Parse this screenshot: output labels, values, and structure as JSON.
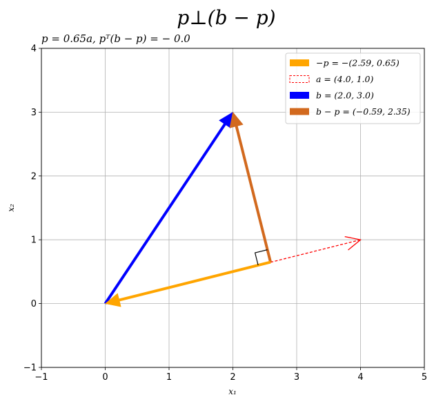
{
  "chart_data": {
    "type": "vector",
    "title": "p⊥(b − p)",
    "subtitle": "p = 0.65a, pᵀ(b − p) = − 0.0",
    "xlabel": "x₁",
    "ylabel": "x₂",
    "xlim": [
      -1,
      5
    ],
    "ylim": [
      -1,
      4
    ],
    "xticks": [
      -1,
      0,
      1,
      2,
      3,
      4,
      5
    ],
    "yticks": [
      -1,
      0,
      1,
      2,
      3,
      4
    ],
    "grid": true,
    "legend_position": "upper-right",
    "right_angle_marker": {
      "at": [
        2.59,
        0.65
      ],
      "size": 0.2
    },
    "vectors": [
      {
        "name": "−p = −(2.59, 0.65)",
        "from": [
          2.59,
          0.65
        ],
        "to": [
          0,
          0
        ],
        "color": "#ffa500",
        "style": "solid"
      },
      {
        "name": "a = (4.0, 1.0)",
        "from": [
          0,
          0
        ],
        "to": [
          4.0,
          1.0
        ],
        "color": "#ff0000",
        "style": "dashed"
      },
      {
        "name": "b = (2.0, 3.0)",
        "from": [
          0,
          0
        ],
        "to": [
          2.0,
          3.0
        ],
        "color": "#0000ff",
        "style": "solid"
      },
      {
        "name": "b − p = (−0.59, 2.35)",
        "from": [
          2.59,
          0.65
        ],
        "to": [
          2.0,
          3.0
        ],
        "color": "#d2691e",
        "style": "solid"
      }
    ]
  }
}
